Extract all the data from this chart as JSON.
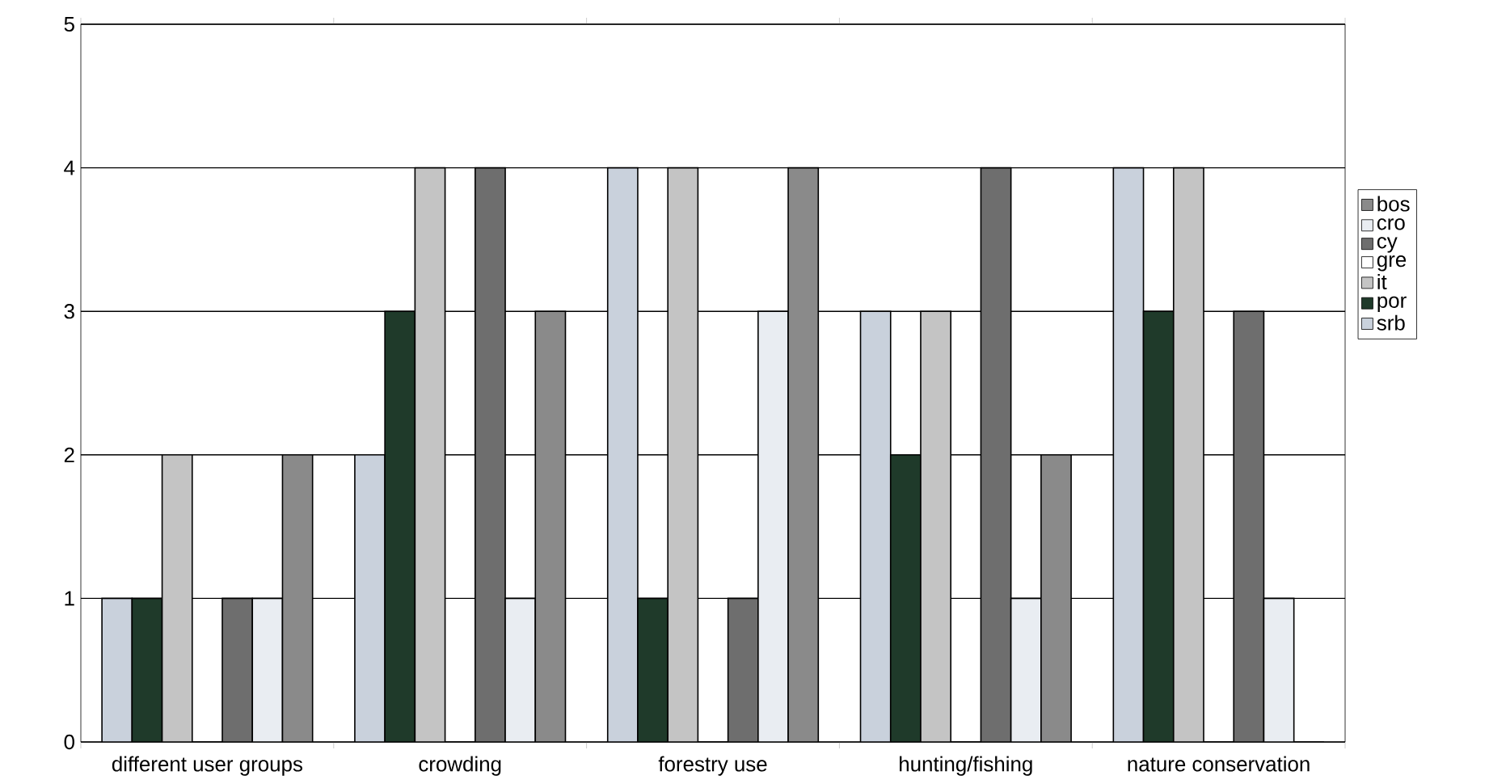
{
  "chart_data": {
    "type": "bar",
    "categories": [
      "different user groups",
      "crowding",
      "forestry use",
      "hunting/fishing",
      "nature conservation"
    ],
    "series": [
      {
        "name": "srb",
        "color": "#c9d1dc",
        "values": [
          1,
          2,
          4,
          3,
          4
        ]
      },
      {
        "name": "por",
        "color": "#1f3a2a",
        "values": [
          1,
          3,
          1,
          2,
          3
        ]
      },
      {
        "name": "it",
        "color": "#c4c4c4",
        "values": [
          2,
          4,
          4,
          3,
          4
        ]
      },
      {
        "name": "gre",
        "color": "#ffffff",
        "values": [
          0,
          0,
          0,
          0,
          0
        ]
      },
      {
        "name": "cy",
        "color": "#6e6e6e",
        "values": [
          1,
          4,
          1,
          4,
          3
        ]
      },
      {
        "name": "cro",
        "color": "#e9edf2",
        "values": [
          1,
          1,
          3,
          1,
          1
        ]
      },
      {
        "name": "bos",
        "color": "#8a8a8a",
        "values": [
          2,
          3,
          4,
          2,
          0
        ]
      }
    ],
    "ylim": [
      0,
      5
    ],
    "yticks": [
      0,
      1,
      2,
      3,
      4,
      5
    ],
    "grid": "y",
    "legend": "right"
  }
}
